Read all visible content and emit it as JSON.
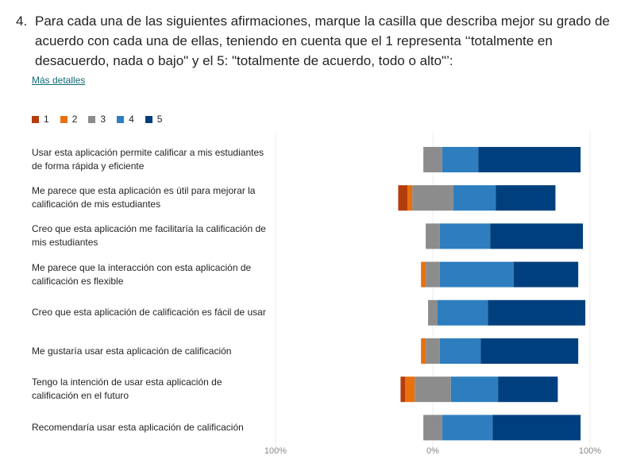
{
  "question": {
    "number": "4.",
    "text": "Para cada una de las siguientes afirmaciones, marque la casilla que describa mejor su grado de acuerdo con cada una de ellas, teniendo en cuenta que el 1 representa ‘‘totalmente en desacuerdo, nada o bajo\" y el 5: \"totalmente de acuerdo, todo o alto\"’:"
  },
  "more_details": "Más detalles",
  "colors": {
    "1": "#b33d0c",
    "2": "#e8700e",
    "3": "#8c8c8c",
    "4": "#2e7ebf",
    "5": "#003f7d"
  },
  "chart_data": {
    "type": "bar",
    "orientation": "horizontal",
    "stacking": "diverging",
    "legend_position": "top-left",
    "x_ticks": [
      "100%",
      "0%",
      "100%"
    ],
    "legend": [
      "1",
      "2",
      "3",
      "4",
      "5"
    ],
    "categories": [
      "Usar esta aplicación permite calificar a mis estudiantes de forma rápida y eficiente",
      "Me parece que esta aplicación es útil para mejorar la calificación de mis estudiantes",
      "Creo que esta aplicación me facilitaría la calificación de mis estudiantes",
      "Me parece que la interacción con esta aplicación de calificación es flexible",
      "Creo que esta aplicación de calificación es fácil de usar",
      "Me gustaría usar esta aplicación de calificación",
      "Tengo la intención de usar esta aplicación de calificación en el futuro",
      "Recomendaría usar esta aplicación de calificación"
    ],
    "series": [
      {
        "name": "1",
        "values": [
          0,
          6,
          0,
          0,
          0,
          0,
          3,
          0
        ]
      },
      {
        "name": "2",
        "values": [
          0,
          3,
          0,
          3,
          0,
          3,
          6,
          0
        ]
      },
      {
        "name": "3",
        "values": [
          12,
          26,
          9,
          9,
          6,
          9,
          23,
          12
        ]
      },
      {
        "name": "4",
        "values": [
          23,
          27,
          32,
          47,
          32,
          26,
          30,
          32
        ]
      },
      {
        "name": "5",
        "values": [
          65,
          38,
          59,
          41,
          62,
          62,
          38,
          56
        ]
      }
    ]
  }
}
